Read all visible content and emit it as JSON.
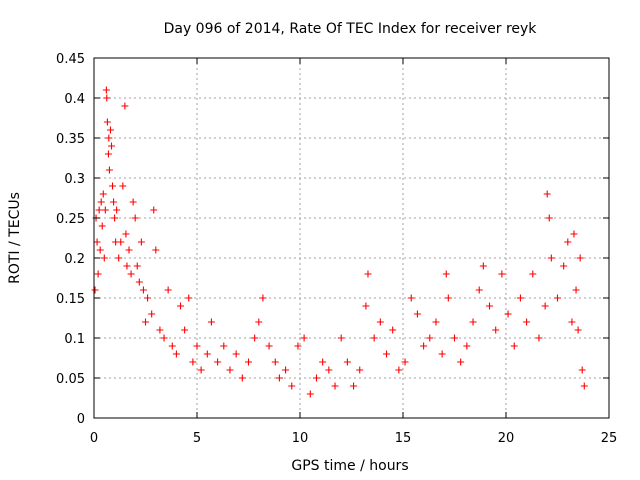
{
  "chart_data": {
    "type": "scatter",
    "title": "Day 096 of 2014, Rate Of TEC Index for receiver reyk",
    "xlabel": "GPS time / hours",
    "ylabel": "ROTI / TECUs",
    "xlim": [
      0,
      25
    ],
    "ylim": [
      0,
      0.45
    ],
    "x_ticks": [
      "0",
      "5",
      "10",
      "15",
      "20",
      "25"
    ],
    "y_ticks": [
      "0",
      "0.05",
      "0.1",
      "0.15",
      "0.2",
      "0.25",
      "0.3",
      "0.35",
      "0.4",
      "0.45"
    ],
    "grid": true,
    "marker": "plus",
    "color": "#ff0000",
    "series": [
      {
        "points": [
          [
            0.05,
            0.16
          ],
          [
            0.1,
            0.25
          ],
          [
            0.15,
            0.22
          ],
          [
            0.2,
            0.18
          ],
          [
            0.25,
            0.26
          ],
          [
            0.3,
            0.21
          ],
          [
            0.35,
            0.27
          ],
          [
            0.4,
            0.24
          ],
          [
            0.45,
            0.28
          ],
          [
            0.5,
            0.2
          ],
          [
            0.55,
            0.26
          ],
          [
            0.6,
            0.41
          ],
          [
            0.62,
            0.4
          ],
          [
            0.65,
            0.37
          ],
          [
            0.7,
            0.33
          ],
          [
            0.72,
            0.35
          ],
          [
            0.75,
            0.31
          ],
          [
            0.8,
            0.36
          ],
          [
            0.85,
            0.34
          ],
          [
            0.9,
            0.29
          ],
          [
            0.95,
            0.27
          ],
          [
            1.0,
            0.25
          ],
          [
            1.05,
            0.22
          ],
          [
            1.1,
            0.26
          ],
          [
            1.2,
            0.2
          ],
          [
            1.3,
            0.22
          ],
          [
            1.4,
            0.29
          ],
          [
            1.5,
            0.39
          ],
          [
            1.55,
            0.23
          ],
          [
            1.6,
            0.19
          ],
          [
            1.7,
            0.21
          ],
          [
            1.8,
            0.18
          ],
          [
            1.9,
            0.27
          ],
          [
            2.0,
            0.25
          ],
          [
            2.1,
            0.19
          ],
          [
            2.2,
            0.17
          ],
          [
            2.3,
            0.22
          ],
          [
            2.4,
            0.16
          ],
          [
            2.5,
            0.12
          ],
          [
            2.6,
            0.15
          ],
          [
            2.8,
            0.13
          ],
          [
            2.9,
            0.26
          ],
          [
            3.0,
            0.21
          ],
          [
            3.2,
            0.11
          ],
          [
            3.4,
            0.1
          ],
          [
            3.6,
            0.16
          ],
          [
            3.8,
            0.09
          ],
          [
            4.0,
            0.08
          ],
          [
            4.2,
            0.14
          ],
          [
            4.4,
            0.11
          ],
          [
            4.6,
            0.15
          ],
          [
            4.8,
            0.07
          ],
          [
            5.0,
            0.09
          ],
          [
            5.2,
            0.06
          ],
          [
            5.5,
            0.08
          ],
          [
            5.7,
            0.12
          ],
          [
            6.0,
            0.07
          ],
          [
            6.3,
            0.09
          ],
          [
            6.6,
            0.06
          ],
          [
            6.9,
            0.08
          ],
          [
            7.2,
            0.05
          ],
          [
            7.5,
            0.07
          ],
          [
            7.8,
            0.1
          ],
          [
            8.0,
            0.12
          ],
          [
            8.2,
            0.15
          ],
          [
            8.5,
            0.09
          ],
          [
            8.8,
            0.07
          ],
          [
            9.0,
            0.05
          ],
          [
            9.3,
            0.06
          ],
          [
            9.6,
            0.04
          ],
          [
            9.9,
            0.09
          ],
          [
            10.2,
            0.1
          ],
          [
            10.5,
            0.03
          ],
          [
            10.8,
            0.05
          ],
          [
            11.1,
            0.07
          ],
          [
            11.4,
            0.06
          ],
          [
            11.7,
            0.04
          ],
          [
            12.0,
            0.1
          ],
          [
            12.3,
            0.07
          ],
          [
            12.6,
            0.04
          ],
          [
            12.9,
            0.06
          ],
          [
            13.2,
            0.14
          ],
          [
            13.3,
            0.18
          ],
          [
            13.6,
            0.1
          ],
          [
            13.9,
            0.12
          ],
          [
            14.2,
            0.08
          ],
          [
            14.5,
            0.11
          ],
          [
            14.8,
            0.06
          ],
          [
            15.1,
            0.07
          ],
          [
            15.4,
            0.15
          ],
          [
            15.7,
            0.13
          ],
          [
            16.0,
            0.09
          ],
          [
            16.3,
            0.1
          ],
          [
            16.6,
            0.12
          ],
          [
            16.9,
            0.08
          ],
          [
            17.1,
            0.18
          ],
          [
            17.2,
            0.15
          ],
          [
            17.5,
            0.1
          ],
          [
            17.8,
            0.07
          ],
          [
            18.1,
            0.09
          ],
          [
            18.4,
            0.12
          ],
          [
            18.7,
            0.16
          ],
          [
            18.9,
            0.19
          ],
          [
            19.2,
            0.14
          ],
          [
            19.5,
            0.11
          ],
          [
            19.8,
            0.18
          ],
          [
            20.1,
            0.13
          ],
          [
            20.4,
            0.09
          ],
          [
            20.7,
            0.15
          ],
          [
            21.0,
            0.12
          ],
          [
            21.3,
            0.18
          ],
          [
            21.6,
            0.1
          ],
          [
            21.9,
            0.14
          ],
          [
            22.0,
            0.28
          ],
          [
            22.1,
            0.25
          ],
          [
            22.2,
            0.2
          ],
          [
            22.5,
            0.15
          ],
          [
            22.8,
            0.19
          ],
          [
            23.0,
            0.22
          ],
          [
            23.2,
            0.12
          ],
          [
            23.3,
            0.23
          ],
          [
            23.4,
            0.16
          ],
          [
            23.5,
            0.11
          ],
          [
            23.6,
            0.2
          ],
          [
            23.7,
            0.06
          ],
          [
            23.8,
            0.04
          ]
        ]
      }
    ]
  }
}
